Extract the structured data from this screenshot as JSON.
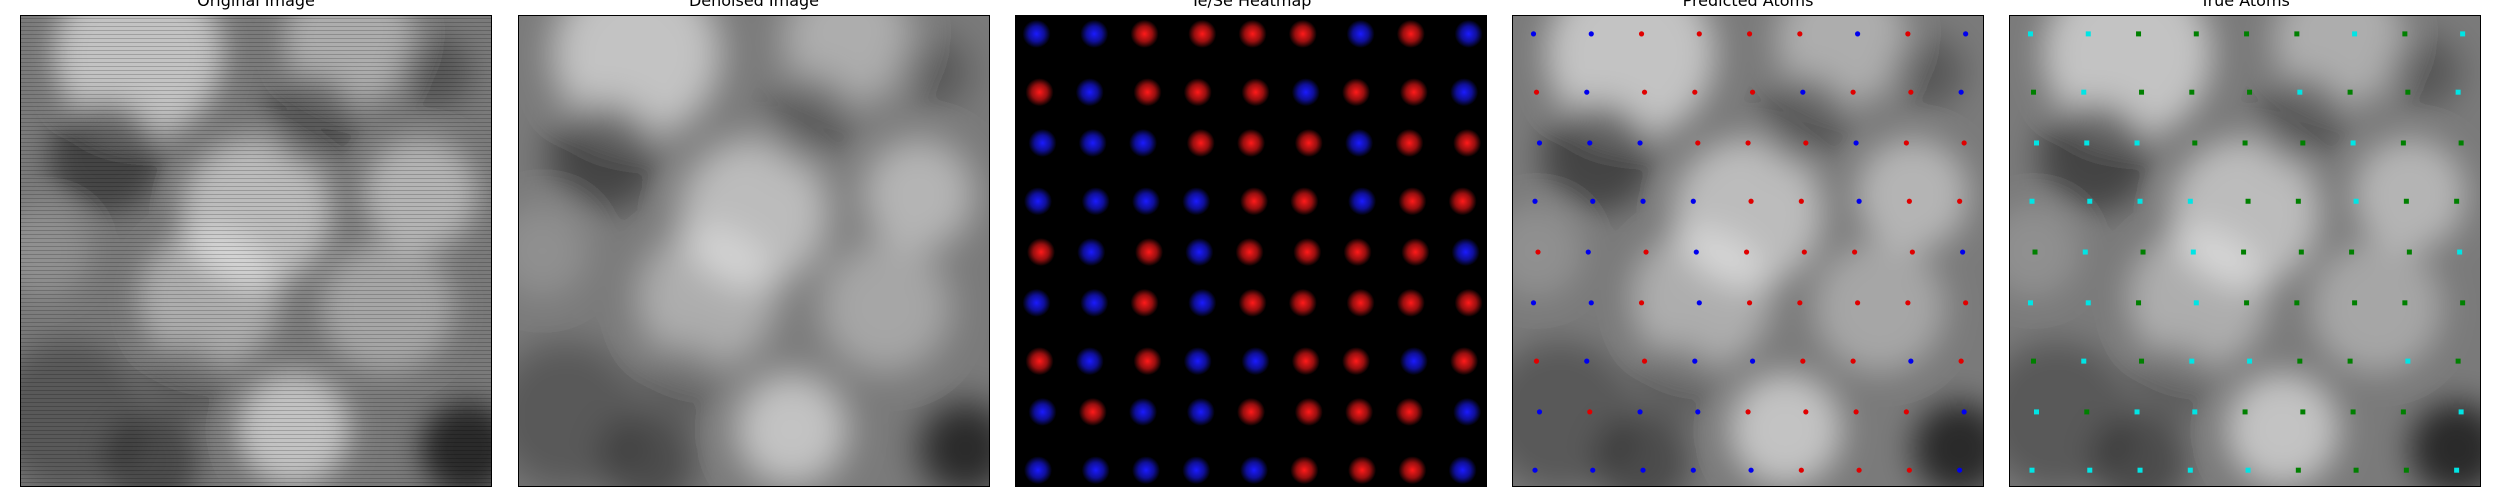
{
  "panels": [
    {
      "id": "original",
      "title": "Original Image"
    },
    {
      "id": "denoised",
      "title": "Denoised Image"
    },
    {
      "id": "heatmap",
      "title": "Te/Se Heatmap"
    },
    {
      "id": "predicted",
      "title": "Predicted Atoms"
    },
    {
      "id": "true",
      "title": "True Atoms"
    }
  ],
  "colors": {
    "te_heat": "#ff1a1a",
    "se_heat": "#1a1aff",
    "pred_te": "#e00000",
    "pred_se": "#0000ee",
    "true_te": "#008000",
    "true_se": "#00e5e5"
  },
  "atom_grid": {
    "rows": 9,
    "cols": 9,
    "labels": [
      "SSTTTTSTS",
      "TSTTTSTTS",
      "SSSTTTSTT",
      "SSSSTTSTT",
      "TSTSTTTTS",
      "SSTSTTTTT",
      "TSTSSTTST",
      "STSSTTTTS",
      "SSSSSTTTS"
    ]
  }
}
